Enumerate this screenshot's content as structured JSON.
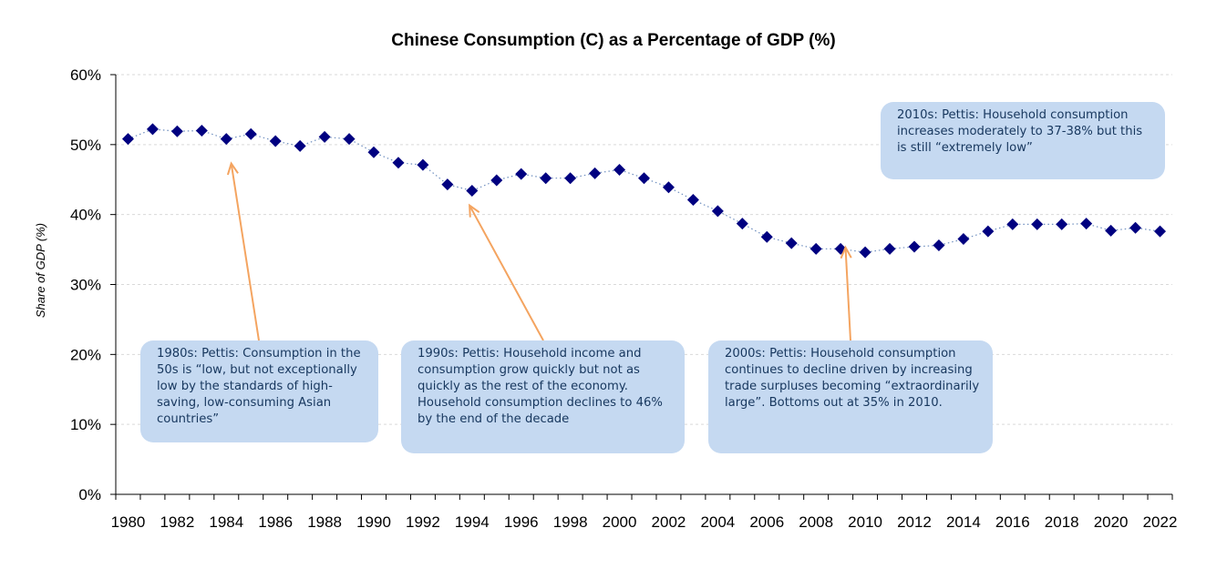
{
  "chart_data": {
    "type": "scatter",
    "title": "Chinese Consumption (C) as a Percentage of GDP (%)",
    "ylabel": "Share of GDP (%)",
    "xlabel": "",
    "ylim": [
      0,
      60
    ],
    "xlim": [
      1980,
      2022
    ],
    "grid": true,
    "marker": "diamond",
    "connector": "dotted",
    "colors": {
      "marker": "#000080",
      "connector": "#6f8fbf",
      "arrow": "#f4a460",
      "callout_bg": "#c5d9f1",
      "callout_text": "#17375e",
      "grid": "#d9d9d9"
    },
    "y_ticks": [
      "0%",
      "10%",
      "20%",
      "30%",
      "40%",
      "50%",
      "60%"
    ],
    "y_tick_values": [
      0,
      10,
      20,
      30,
      40,
      50,
      60
    ],
    "x_tick_labels": [
      "1980",
      "1982",
      "1984",
      "1986",
      "1988",
      "1990",
      "1992",
      "1994",
      "1996",
      "1998",
      "2000",
      "2002",
      "2004",
      "2006",
      "2008",
      "2010",
      "2012",
      "2014",
      "2016",
      "2018",
      "2020",
      "2022"
    ],
    "x_tick_values": [
      1980,
      1982,
      1984,
      1986,
      1988,
      1990,
      1992,
      1994,
      1996,
      1998,
      2000,
      2002,
      2004,
      2006,
      2008,
      2010,
      2012,
      2014,
      2016,
      2018,
      2020,
      2022
    ],
    "x": [
      1980,
      1981,
      1982,
      1983,
      1984,
      1985,
      1986,
      1987,
      1988,
      1989,
      1990,
      1991,
      1992,
      1993,
      1994,
      1995,
      1996,
      1997,
      1998,
      1999,
      2000,
      2001,
      2002,
      2003,
      2004,
      2005,
      2006,
      2007,
      2008,
      2009,
      2010,
      2011,
      2012,
      2013,
      2014,
      2015,
      2016,
      2017,
      2018,
      2019,
      2020,
      2021,
      2022
    ],
    "values": [
      50.8,
      52.2,
      51.9,
      52.0,
      50.8,
      51.5,
      50.5,
      49.8,
      51.1,
      50.8,
      48.9,
      47.4,
      47.1,
      44.3,
      43.4,
      44.9,
      45.8,
      45.2,
      45.2,
      45.9,
      46.4,
      45.2,
      43.9,
      42.1,
      40.5,
      38.7,
      36.8,
      35.9,
      35.1,
      35.1,
      34.6,
      35.1,
      35.4,
      35.6,
      36.5,
      37.6,
      38.6,
      38.6,
      38.6,
      38.7,
      37.7,
      38.1,
      37.6
    ],
    "annotations": [
      {
        "text": "1980s: Pettis: Consumption in the 50s is “low, but not exceptionally low by the standards of high-saving, low-consuming Asian countries”",
        "arrow_to_year": 1984.2,
        "arrow_to_value": 47.3
      },
      {
        "text": "1990s: Pettis: Household income and consumption grow quickly but not as quickly as the rest of the economy. Household consumption declines to 46% by the end of the decade",
        "arrow_to_year": 1993.9,
        "arrow_to_value": 41.3
      },
      {
        "text": "2000s: Pettis: Household consumption continues to decline driven by increasing trade surpluses becoming “extraordinarily large”.  Bottoms out at 35% in 2010.",
        "arrow_to_year": 2009.2,
        "arrow_to_value": 35.3
      },
      {
        "text": "2010s: Pettis: Household consumption increases moderately to 37-38% but this is still “extremely low”"
      }
    ]
  }
}
